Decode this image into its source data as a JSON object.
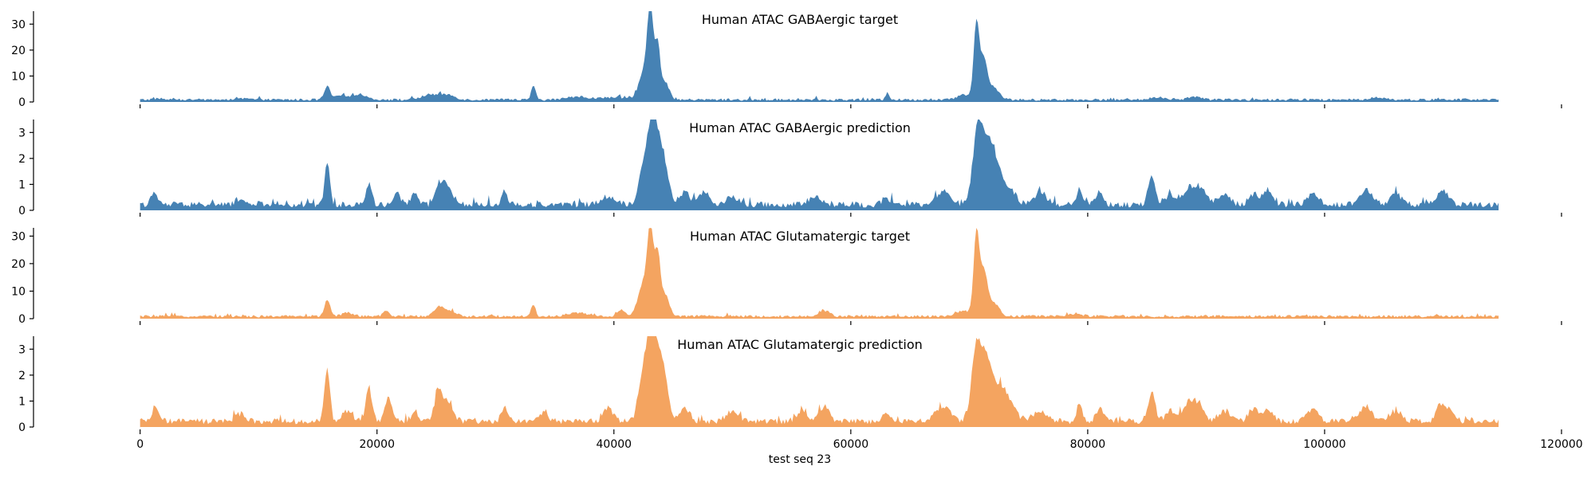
{
  "chart_data": {
    "type": "area",
    "xlabel": "test seq 23",
    "xlim": [
      -9000,
      120000
    ],
    "x_data_range": [
      0,
      114688
    ],
    "x_ticks": [
      0,
      20000,
      40000,
      60000,
      80000,
      100000,
      120000
    ],
    "grid": false,
    "panels": [
      {
        "title": "Human ATAC GABAergic target",
        "color": "#4682b4",
        "ylim": [
          0,
          35
        ],
        "y_ticks": [
          0,
          10,
          20,
          30
        ],
        "baseline": 1.0,
        "peaks": [
          {
            "x": 1500,
            "h": 0.5,
            "w": 400
          },
          {
            "x": 8800,
            "h": 0.4,
            "w": 500
          },
          {
            "x": 15800,
            "h": 5.0,
            "w": 250
          },
          {
            "x": 17000,
            "h": 1.5,
            "w": 500
          },
          {
            "x": 18500,
            "h": 1.8,
            "w": 700
          },
          {
            "x": 24500,
            "h": 2.0,
            "w": 700
          },
          {
            "x": 26000,
            "h": 1.8,
            "w": 600
          },
          {
            "x": 33200,
            "h": 5.5,
            "w": 180
          },
          {
            "x": 37000,
            "h": 1.2,
            "w": 900
          },
          {
            "x": 40000,
            "h": 1.0,
            "w": 900
          },
          {
            "x": 42600,
            "h": 12.0,
            "w": 450
          },
          {
            "x": 43100,
            "h": 32.0,
            "w": 250
          },
          {
            "x": 43700,
            "h": 20.0,
            "w": 200
          },
          {
            "x": 44300,
            "h": 7.0,
            "w": 350
          },
          {
            "x": 63100,
            "h": 3.0,
            "w": 150
          },
          {
            "x": 69500,
            "h": 2.0,
            "w": 500
          },
          {
            "x": 70600,
            "h": 29.0,
            "w": 230
          },
          {
            "x": 71200,
            "h": 15.0,
            "w": 300
          },
          {
            "x": 72000,
            "h": 5.0,
            "w": 500
          },
          {
            "x": 86000,
            "h": 1.0,
            "w": 600
          },
          {
            "x": 89000,
            "h": 1.2,
            "w": 500
          },
          {
            "x": 104500,
            "h": 1.0,
            "w": 600
          }
        ]
      },
      {
        "title": "Human ATAC GABAergic prediction",
        "color": "#4682b4",
        "ylim": [
          0,
          3.5
        ],
        "y_ticks": [
          0,
          1,
          2,
          3
        ],
        "baseline": 0.25,
        "peaks": [
          {
            "x": 1200,
            "h": 0.4,
            "w": 300
          },
          {
            "x": 8500,
            "h": 0.2,
            "w": 400
          },
          {
            "x": 15800,
            "h": 1.6,
            "w": 220
          },
          {
            "x": 19300,
            "h": 0.8,
            "w": 250
          },
          {
            "x": 21700,
            "h": 0.4,
            "w": 300
          },
          {
            "x": 23200,
            "h": 0.4,
            "w": 300
          },
          {
            "x": 25200,
            "h": 0.6,
            "w": 300
          },
          {
            "x": 25900,
            "h": 0.8,
            "w": 450
          },
          {
            "x": 30800,
            "h": 0.4,
            "w": 300
          },
          {
            "x": 39500,
            "h": 0.3,
            "w": 700
          },
          {
            "x": 42600,
            "h": 1.5,
            "w": 450
          },
          {
            "x": 43300,
            "h": 2.7,
            "w": 400
          },
          {
            "x": 44100,
            "h": 1.9,
            "w": 450
          },
          {
            "x": 46000,
            "h": 0.5,
            "w": 400
          },
          {
            "x": 47600,
            "h": 0.5,
            "w": 400
          },
          {
            "x": 50000,
            "h": 0.3,
            "w": 500
          },
          {
            "x": 57000,
            "h": 0.3,
            "w": 500
          },
          {
            "x": 63000,
            "h": 0.3,
            "w": 300
          },
          {
            "x": 67800,
            "h": 0.5,
            "w": 600
          },
          {
            "x": 70700,
            "h": 2.8,
            "w": 400
          },
          {
            "x": 71600,
            "h": 2.2,
            "w": 500
          },
          {
            "x": 72500,
            "h": 1.0,
            "w": 500
          },
          {
            "x": 73500,
            "h": 0.5,
            "w": 500
          },
          {
            "x": 76000,
            "h": 0.4,
            "w": 600
          },
          {
            "x": 79300,
            "h": 0.6,
            "w": 250
          },
          {
            "x": 81000,
            "h": 0.5,
            "w": 300
          },
          {
            "x": 85400,
            "h": 1.1,
            "w": 300
          },
          {
            "x": 87000,
            "h": 0.4,
            "w": 400
          },
          {
            "x": 88600,
            "h": 0.7,
            "w": 500
          },
          {
            "x": 89700,
            "h": 0.6,
            "w": 400
          },
          {
            "x": 91500,
            "h": 0.4,
            "w": 500
          },
          {
            "x": 94000,
            "h": 0.4,
            "w": 400
          },
          {
            "x": 95200,
            "h": 0.6,
            "w": 400
          },
          {
            "x": 99000,
            "h": 0.4,
            "w": 500
          },
          {
            "x": 103500,
            "h": 0.6,
            "w": 500
          },
          {
            "x": 106000,
            "h": 0.4,
            "w": 500
          },
          {
            "x": 110000,
            "h": 0.5,
            "w": 500
          }
        ]
      },
      {
        "title": "Human ATAC Glutamatergic target",
        "color": "#f4a460",
        "ylim": [
          0,
          33
        ],
        "y_ticks": [
          0,
          10,
          20,
          30
        ],
        "baseline": 1.0,
        "peaks": [
          {
            "x": 15800,
            "h": 6.0,
            "w": 250
          },
          {
            "x": 17500,
            "h": 1.2,
            "w": 500
          },
          {
            "x": 20800,
            "h": 2.0,
            "w": 250
          },
          {
            "x": 25200,
            "h": 3.5,
            "w": 400
          },
          {
            "x": 26200,
            "h": 1.8,
            "w": 500
          },
          {
            "x": 33200,
            "h": 4.5,
            "w": 180
          },
          {
            "x": 37000,
            "h": 1.2,
            "w": 900
          },
          {
            "x": 40600,
            "h": 2.2,
            "w": 300
          },
          {
            "x": 42500,
            "h": 12.0,
            "w": 450
          },
          {
            "x": 43100,
            "h": 29.0,
            "w": 260
          },
          {
            "x": 43700,
            "h": 21.0,
            "w": 220
          },
          {
            "x": 44300,
            "h": 8.0,
            "w": 350
          },
          {
            "x": 57800,
            "h": 2.0,
            "w": 400
          },
          {
            "x": 69500,
            "h": 2.0,
            "w": 500
          },
          {
            "x": 70600,
            "h": 30.0,
            "w": 230
          },
          {
            "x": 71200,
            "h": 16.0,
            "w": 300
          },
          {
            "x": 72000,
            "h": 5.0,
            "w": 500
          },
          {
            "x": 79000,
            "h": 1.0,
            "w": 500
          }
        ]
      },
      {
        "title": "Human ATAC Glutamatergic prediction",
        "color": "#f4a460",
        "ylim": [
          0,
          3.5
        ],
        "y_ticks": [
          0,
          1,
          2,
          3
        ],
        "baseline": 0.25,
        "peaks": [
          {
            "x": 1300,
            "h": 0.5,
            "w": 300
          },
          {
            "x": 8500,
            "h": 0.3,
            "w": 400
          },
          {
            "x": 15800,
            "h": 2.1,
            "w": 220
          },
          {
            "x": 17500,
            "h": 0.4,
            "w": 400
          },
          {
            "x": 19300,
            "h": 1.4,
            "w": 250
          },
          {
            "x": 21000,
            "h": 0.9,
            "w": 300
          },
          {
            "x": 23200,
            "h": 0.4,
            "w": 300
          },
          {
            "x": 25200,
            "h": 1.2,
            "w": 300
          },
          {
            "x": 26000,
            "h": 0.8,
            "w": 400
          },
          {
            "x": 30800,
            "h": 0.5,
            "w": 300
          },
          {
            "x": 34000,
            "h": 0.3,
            "w": 400
          },
          {
            "x": 39500,
            "h": 0.5,
            "w": 400
          },
          {
            "x": 42600,
            "h": 2.0,
            "w": 450
          },
          {
            "x": 43300,
            "h": 2.8,
            "w": 400
          },
          {
            "x": 44100,
            "h": 2.0,
            "w": 450
          },
          {
            "x": 46000,
            "h": 0.5,
            "w": 400
          },
          {
            "x": 50000,
            "h": 0.4,
            "w": 500
          },
          {
            "x": 55800,
            "h": 0.4,
            "w": 400
          },
          {
            "x": 57800,
            "h": 0.6,
            "w": 400
          },
          {
            "x": 63000,
            "h": 0.4,
            "w": 300
          },
          {
            "x": 67800,
            "h": 0.6,
            "w": 600
          },
          {
            "x": 70600,
            "h": 2.8,
            "w": 400
          },
          {
            "x": 71500,
            "h": 2.3,
            "w": 450
          },
          {
            "x": 72600,
            "h": 1.2,
            "w": 500
          },
          {
            "x": 73500,
            "h": 0.6,
            "w": 500
          },
          {
            "x": 76000,
            "h": 0.4,
            "w": 600
          },
          {
            "x": 79300,
            "h": 0.6,
            "w": 250
          },
          {
            "x": 81000,
            "h": 0.5,
            "w": 300
          },
          {
            "x": 85400,
            "h": 1.1,
            "w": 300
          },
          {
            "x": 87000,
            "h": 0.4,
            "w": 400
          },
          {
            "x": 88600,
            "h": 0.8,
            "w": 450
          },
          {
            "x": 89500,
            "h": 0.6,
            "w": 400
          },
          {
            "x": 91500,
            "h": 0.4,
            "w": 500
          },
          {
            "x": 94000,
            "h": 0.5,
            "w": 400
          },
          {
            "x": 95200,
            "h": 0.5,
            "w": 400
          },
          {
            "x": 99000,
            "h": 0.4,
            "w": 500
          },
          {
            "x": 103500,
            "h": 0.6,
            "w": 500
          },
          {
            "x": 106000,
            "h": 0.4,
            "w": 500
          },
          {
            "x": 109700,
            "h": 0.6,
            "w": 300
          },
          {
            "x": 110500,
            "h": 0.5,
            "w": 400
          }
        ]
      }
    ]
  }
}
